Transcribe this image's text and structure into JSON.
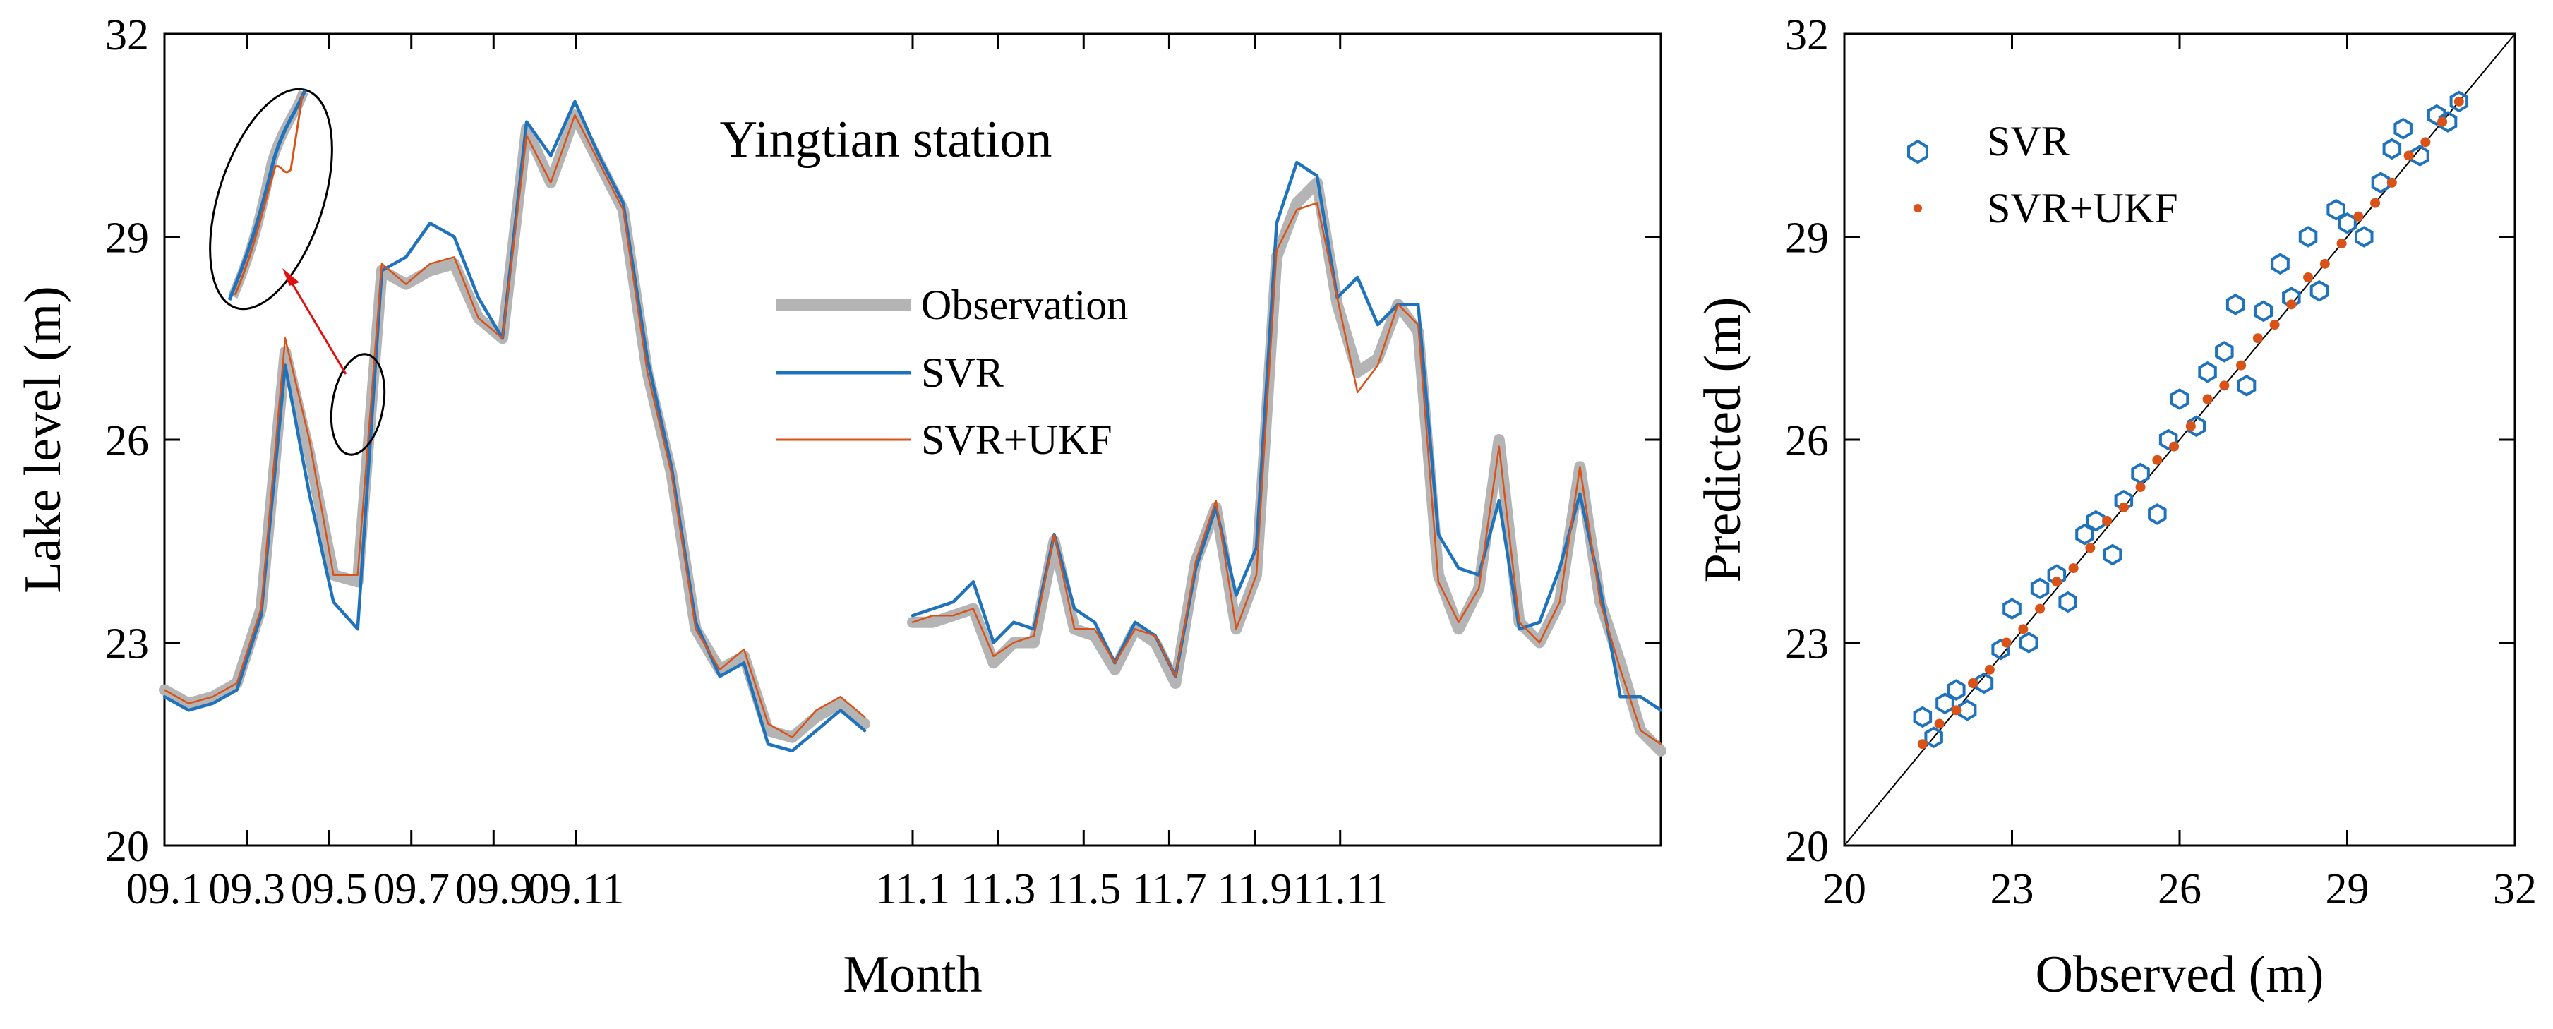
{
  "chart_data": [
    {
      "type": "line",
      "title": "Yingtian station",
      "xlabel": "Month",
      "ylabel": "Lake level (m)",
      "ylim": [
        20,
        32
      ],
      "yticks": [
        20,
        23,
        26,
        29,
        32
      ],
      "grid": false,
      "legend_position": "right-center",
      "x_segments": [
        {
          "name": "September",
          "xlim": [
            1,
            36
          ],
          "tick_values": [
            1,
            5,
            9,
            13,
            17,
            21
          ],
          "tick_labels": [
            "09.1",
            "09.3",
            "09.5",
            "09.7",
            "09.9",
            "09.11"
          ],
          "data_x_end": 32
        },
        {
          "name": "November",
          "xlim": [
            1,
            36
          ],
          "tick_values": [
            1,
            5,
            9,
            13,
            17,
            21
          ],
          "tick_labels": [
            "11.1",
            "11.3",
            "11.5",
            "11.7",
            "11.9",
            "11.11"
          ],
          "data_x_end": 36
        }
      ],
      "series": [
        {
          "name": "Observation",
          "color": "#b4b4b4",
          "segment1": [
            22.3,
            22.1,
            22.2,
            22.4,
            23.5,
            27.3,
            25.8,
            24.0,
            23.9,
            28.5,
            28.3,
            28.5,
            28.6,
            27.8,
            27.5,
            30.6,
            29.8,
            30.8,
            30.1,
            29.4,
            27.0,
            25.5,
            23.2,
            22.6,
            22.8,
            21.7,
            21.6,
            21.9,
            22.1,
            21.8
          ],
          "segment2": [
            23.3,
            23.3,
            23.4,
            23.5,
            22.7,
            23.0,
            23.0,
            24.5,
            23.2,
            23.1,
            22.6,
            23.2,
            23.0,
            22.4,
            24.2,
            25.0,
            23.2,
            24.0,
            28.7,
            29.5,
            29.8,
            28.0,
            27.0,
            27.2,
            28.0,
            27.6,
            24.0,
            23.2,
            23.8,
            26.0,
            23.3,
            23.0,
            23.6,
            25.6,
            23.6,
            22.7,
            21.7,
            21.4
          ]
        },
        {
          "name": "SVR",
          "color": "#1f72bc",
          "segment1": [
            22.2,
            22.0,
            22.1,
            22.3,
            23.4,
            27.1,
            25.2,
            23.6,
            23.2,
            28.5,
            28.7,
            29.2,
            29.0,
            28.1,
            27.5,
            30.7,
            30.2,
            31.0,
            30.2,
            29.5,
            27.2,
            25.6,
            23.3,
            22.5,
            22.7,
            21.5,
            21.4,
            21.7,
            22.0,
            21.7
          ],
          "segment2": [
            23.4,
            23.5,
            23.6,
            23.9,
            23.0,
            23.3,
            23.2,
            24.6,
            23.5,
            23.3,
            22.7,
            23.3,
            23.1,
            22.5,
            24.1,
            25.0,
            23.7,
            24.4,
            29.2,
            30.1,
            29.9,
            28.1,
            28.4,
            27.7,
            28.0,
            28.0,
            24.6,
            24.1,
            24.0,
            25.1,
            23.2,
            23.3,
            24.1,
            25.2,
            23.8,
            22.2,
            22.2,
            22.0
          ]
        },
        {
          "name": "SVR+UKF",
          "color": "#d95319",
          "segment1": [
            22.3,
            22.1,
            22.2,
            22.4,
            23.5,
            27.5,
            26.0,
            24.0,
            24.0,
            28.6,
            28.3,
            28.6,
            28.7,
            27.8,
            27.5,
            30.5,
            29.8,
            30.8,
            30.1,
            29.4,
            27.0,
            25.5,
            23.2,
            22.6,
            22.9,
            21.8,
            21.6,
            22.0,
            22.2,
            21.9
          ],
          "segment2": [
            23.3,
            23.4,
            23.4,
            23.5,
            22.8,
            23.0,
            23.1,
            24.6,
            23.2,
            23.2,
            22.7,
            23.2,
            23.1,
            22.5,
            24.2,
            25.1,
            23.2,
            24.0,
            28.8,
            29.4,
            29.5,
            28.1,
            26.7,
            27.1,
            28.0,
            27.7,
            23.9,
            23.3,
            23.8,
            25.9,
            23.3,
            23.0,
            23.6,
            25.6,
            23.6,
            22.6,
            21.7,
            21.5
          ]
        }
      ],
      "annotations": [
        "Inset ellipse zooming on rise near 09.4"
      ]
    },
    {
      "type": "scatter",
      "xlabel": "Observed (m)",
      "ylabel": "Predicted (m)",
      "xlim": [
        20,
        32
      ],
      "ylim": [
        20,
        32
      ],
      "xticks": [
        20,
        23,
        26,
        29,
        32
      ],
      "yticks": [
        20,
        23,
        26,
        29,
        32
      ],
      "legend_position": "top-left",
      "reference_line": "1:1",
      "series": [
        {
          "name": "SVR",
          "color": "#1f72bc",
          "marker": "hexagon-open",
          "x": [
            21.4,
            21.6,
            21.8,
            22.0,
            22.2,
            22.5,
            22.8,
            23.0,
            23.3,
            23.5,
            23.8,
            24.0,
            24.3,
            24.5,
            24.8,
            25.0,
            25.3,
            25.6,
            25.8,
            26.0,
            26.3,
            26.5,
            26.8,
            27.0,
            27.2,
            27.5,
            27.8,
            28.0,
            28.3,
            28.5,
            28.8,
            29.0,
            29.3,
            29.6,
            29.8,
            30.0,
            30.3,
            30.6,
            30.8,
            31.0
          ],
          "y": [
            21.9,
            21.6,
            22.1,
            22.3,
            22.0,
            22.4,
            22.9,
            23.5,
            23.0,
            23.8,
            24.0,
            23.6,
            24.6,
            24.8,
            24.3,
            25.1,
            25.5,
            24.9,
            26.0,
            26.6,
            26.2,
            27.0,
            27.3,
            28.0,
            26.8,
            27.9,
            28.6,
            28.1,
            29.0,
            28.2,
            29.4,
            29.2,
            29.0,
            29.8,
            30.3,
            30.6,
            30.2,
            30.8,
            30.7,
            31.0
          ]
        },
        {
          "name": "SVR+UKF",
          "color": "#d95319",
          "marker": "dot",
          "x": [
            21.4,
            21.7,
            22.0,
            22.3,
            22.6,
            22.9,
            23.2,
            23.5,
            23.8,
            24.1,
            24.4,
            24.7,
            25.0,
            25.3,
            25.6,
            25.9,
            26.2,
            26.5,
            26.8,
            27.1,
            27.4,
            27.7,
            28.0,
            28.3,
            28.6,
            28.9,
            29.2,
            29.5,
            29.8,
            30.1,
            30.4,
            30.7,
            31.0
          ],
          "y": [
            21.5,
            21.8,
            22.0,
            22.4,
            22.6,
            23.0,
            23.2,
            23.5,
            23.9,
            24.1,
            24.4,
            24.8,
            25.0,
            25.3,
            25.7,
            25.9,
            26.2,
            26.6,
            26.8,
            27.1,
            27.5,
            27.7,
            28.0,
            28.4,
            28.6,
            28.9,
            29.3,
            29.5,
            29.8,
            30.2,
            30.4,
            30.7,
            31.0
          ]
        }
      ]
    }
  ]
}
